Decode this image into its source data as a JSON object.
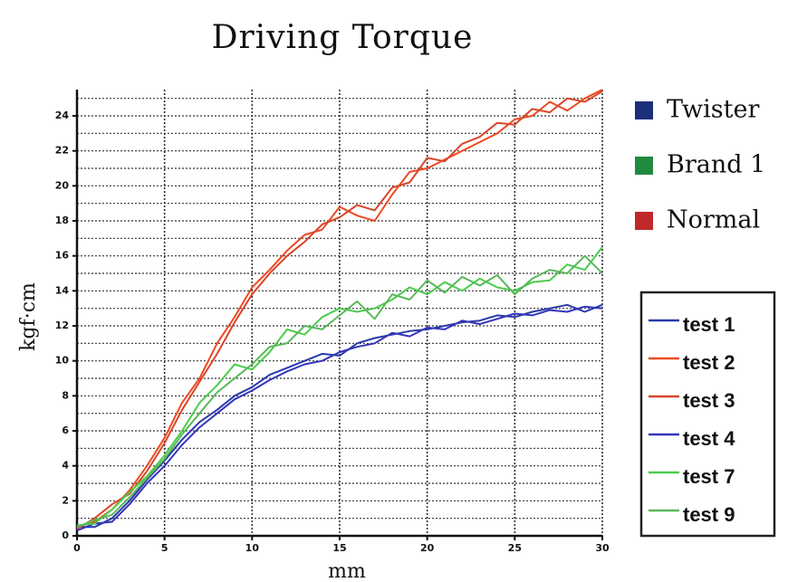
{
  "chart_data": {
    "type": "line",
    "title": "Driving Torque",
    "xlabel": "mm",
    "ylabel": "kgf·cm",
    "x": [
      0,
      1,
      2,
      3,
      4,
      5,
      6,
      7,
      8,
      9,
      10,
      11,
      12,
      13,
      14,
      15,
      16,
      17,
      18,
      19,
      20,
      21,
      22,
      23,
      24,
      25,
      26,
      27,
      28,
      29,
      30
    ],
    "series": [
      {
        "name": "test 1",
        "color": "#2a3aaa",
        "values": [
          0.5,
          0.5,
          1.0,
          2.0,
          3.2,
          4.3,
          5.5,
          6.5,
          7.2,
          8.0,
          8.5,
          9.2,
          9.6,
          10.0,
          10.4,
          10.3,
          11.0,
          11.3,
          11.5,
          11.7,
          11.8,
          12.0,
          12.2,
          12.3,
          12.6,
          12.5,
          12.8,
          13.0,
          13.2,
          12.8,
          13.2
        ]
      },
      {
        "name": "test 2",
        "color": "#ee4a22",
        "values": [
          0.5,
          0.8,
          1.5,
          2.6,
          4.0,
          5.6,
          7.6,
          9.0,
          11.0,
          12.5,
          14.2,
          15.2,
          16.3,
          17.2,
          17.5,
          18.8,
          18.3,
          18.0,
          19.5,
          20.8,
          21.0,
          21.5,
          22.0,
          22.5,
          23.0,
          23.8,
          24.0,
          24.8,
          24.3,
          25.0,
          25.5
        ]
      },
      {
        "name": "test 3",
        "color": "#d9452a",
        "values": [
          0.4,
          1.0,
          1.8,
          2.4,
          3.7,
          5.3,
          7.2,
          8.8,
          10.4,
          12.2,
          13.8,
          15.0,
          16.0,
          16.8,
          17.8,
          18.2,
          18.9,
          18.6,
          19.9,
          20.2,
          21.6,
          21.4,
          22.4,
          22.8,
          23.6,
          23.5,
          24.4,
          24.2,
          25.0,
          24.8,
          25.4
        ]
      },
      {
        "name": "test 4",
        "color": "#3535bb",
        "values": [
          0.3,
          0.7,
          0.8,
          1.8,
          3.0,
          4.0,
          5.2,
          6.2,
          7.0,
          7.8,
          8.3,
          8.9,
          9.4,
          9.8,
          10.0,
          10.5,
          10.8,
          11.0,
          11.6,
          11.4,
          11.9,
          11.8,
          12.3,
          12.1,
          12.4,
          12.7,
          12.6,
          12.9,
          12.8,
          13.1,
          13.0
        ]
      },
      {
        "name": "test 7",
        "color": "#4ccc4c",
        "values": [
          0.6,
          0.7,
          1.5,
          2.5,
          3.4,
          4.6,
          6.0,
          7.6,
          8.6,
          9.8,
          9.5,
          10.5,
          11.8,
          11.5,
          12.5,
          13.0,
          12.8,
          13.0,
          13.5,
          14.2,
          13.8,
          14.5,
          14.0,
          14.7,
          14.2,
          14.0,
          14.5,
          14.6,
          15.5,
          15.2,
          16.5
        ]
      },
      {
        "name": "test 9",
        "color": "#5ab85a",
        "values": [
          0.5,
          0.9,
          1.2,
          2.2,
          3.3,
          4.4,
          5.8,
          7.0,
          8.2,
          9.0,
          9.8,
          10.8,
          11.0,
          12.0,
          11.8,
          12.6,
          13.4,
          12.4,
          13.8,
          13.5,
          14.6,
          13.9,
          14.8,
          14.3,
          14.9,
          13.8,
          14.7,
          15.2,
          15.0,
          16.0,
          15.0
        ]
      }
    ],
    "groups": [
      {
        "name": "Twister",
        "color": "#1c2f7c"
      },
      {
        "name": "Brand 1",
        "color": "#208a3e"
      },
      {
        "name": "Normal",
        "color": "#c0282a"
      }
    ],
    "xlim": [
      0,
      30
    ],
    "ylim": [
      0,
      25.5
    ],
    "xticks": [
      0,
      5,
      10,
      15,
      20,
      25,
      30
    ],
    "yticks": [
      0,
      2,
      4,
      6,
      8,
      10,
      12,
      14,
      16,
      18,
      20,
      22,
      24
    ],
    "minor_yticks": [
      1,
      3,
      5,
      7,
      9,
      11,
      13,
      15,
      17,
      19,
      21,
      23,
      25
    ],
    "grid": true
  }
}
